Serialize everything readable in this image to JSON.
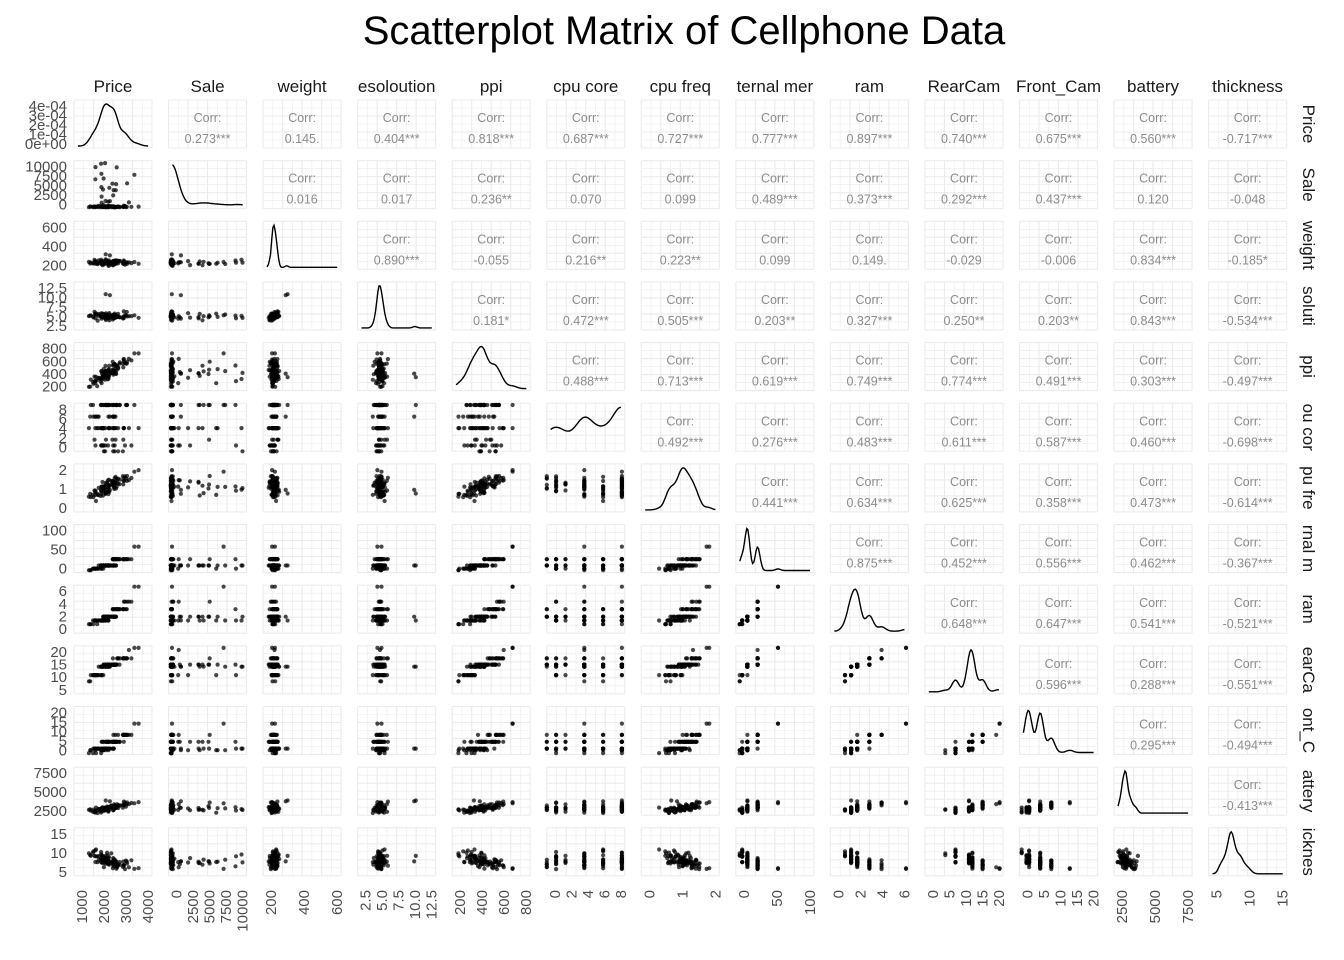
{
  "chart_data": {
    "type": "scatter",
    "title": "Scatterplot Matrix of Cellphone Data",
    "variables": [
      "Price",
      "Sale",
      "weight",
      "resoloution",
      "ppi",
      "cpu core",
      "cpu freq",
      "internal mem",
      "ram",
      "RearCam",
      "Front_Cam",
      "battery",
      "thickness"
    ],
    "strip_labels": [
      "Price",
      "Sale",
      "weight",
      "esoloution",
      "ppi",
      "cpu core",
      "cpu freq",
      "ternal mer",
      "ram",
      "RearCam",
      "Front_Cam",
      "battery",
      "thickness"
    ],
    "right_strip_labels": [
      "Price",
      "Sale",
      "weight",
      "soluti",
      "ppi",
      "ou cor",
      "pu fre",
      "rnal m",
      "ram",
      "earCa",
      "ont_C",
      "attery",
      "icknes"
    ],
    "corr_label": "Corr:",
    "correlations": [
      {
        "row": 0,
        "col": 1,
        "value": "0.273***"
      },
      {
        "row": 0,
        "col": 2,
        "value": "0.145."
      },
      {
        "row": 0,
        "col": 3,
        "value": "0.404***"
      },
      {
        "row": 0,
        "col": 4,
        "value": "0.818***"
      },
      {
        "row": 0,
        "col": 5,
        "value": "0.687***"
      },
      {
        "row": 0,
        "col": 6,
        "value": "0.727***"
      },
      {
        "row": 0,
        "col": 7,
        "value": "0.777***"
      },
      {
        "row": 0,
        "col": 8,
        "value": "0.897***"
      },
      {
        "row": 0,
        "col": 9,
        "value": "0.740***"
      },
      {
        "row": 0,
        "col": 10,
        "value": "0.675***"
      },
      {
        "row": 0,
        "col": 11,
        "value": "0.560***"
      },
      {
        "row": 0,
        "col": 12,
        "value": "-0.717***"
      },
      {
        "row": 1,
        "col": 2,
        "value": "0.016"
      },
      {
        "row": 1,
        "col": 3,
        "value": "0.017"
      },
      {
        "row": 1,
        "col": 4,
        "value": "0.236**"
      },
      {
        "row": 1,
        "col": 5,
        "value": "0.070"
      },
      {
        "row": 1,
        "col": 6,
        "value": "0.099"
      },
      {
        "row": 1,
        "col": 7,
        "value": "0.489***"
      },
      {
        "row": 1,
        "col": 8,
        "value": "0.373***"
      },
      {
        "row": 1,
        "col": 9,
        "value": "0.292***"
      },
      {
        "row": 1,
        "col": 10,
        "value": "0.437***"
      },
      {
        "row": 1,
        "col": 11,
        "value": "0.120"
      },
      {
        "row": 1,
        "col": 12,
        "value": "-0.048"
      },
      {
        "row": 2,
        "col": 3,
        "value": "0.890***"
      },
      {
        "row": 2,
        "col": 4,
        "value": "-0.055"
      },
      {
        "row": 2,
        "col": 5,
        "value": "0.216**"
      },
      {
        "row": 2,
        "col": 6,
        "value": "0.223**"
      },
      {
        "row": 2,
        "col": 7,
        "value": "0.099"
      },
      {
        "row": 2,
        "col": 8,
        "value": "0.149."
      },
      {
        "row": 2,
        "col": 9,
        "value": "-0.029"
      },
      {
        "row": 2,
        "col": 10,
        "value": "-0.006"
      },
      {
        "row": 2,
        "col": 11,
        "value": "0.834***"
      },
      {
        "row": 2,
        "col": 12,
        "value": "-0.185*"
      },
      {
        "row": 3,
        "col": 4,
        "value": "0.181*"
      },
      {
        "row": 3,
        "col": 5,
        "value": "0.472***"
      },
      {
        "row": 3,
        "col": 6,
        "value": "0.505***"
      },
      {
        "row": 3,
        "col": 7,
        "value": "0.203**"
      },
      {
        "row": 3,
        "col": 8,
        "value": "0.327***"
      },
      {
        "row": 3,
        "col": 9,
        "value": "0.250**"
      },
      {
        "row": 3,
        "col": 10,
        "value": "0.203**"
      },
      {
        "row": 3,
        "col": 11,
        "value": "0.843***"
      },
      {
        "row": 3,
        "col": 12,
        "value": "-0.534***"
      },
      {
        "row": 4,
        "col": 5,
        "value": "0.488***"
      },
      {
        "row": 4,
        "col": 6,
        "value": "0.713***"
      },
      {
        "row": 4,
        "col": 7,
        "value": "0.619***"
      },
      {
        "row": 4,
        "col": 8,
        "value": "0.749***"
      },
      {
        "row": 4,
        "col": 9,
        "value": "0.774***"
      },
      {
        "row": 4,
        "col": 10,
        "value": "0.491***"
      },
      {
        "row": 4,
        "col": 11,
        "value": "0.303***"
      },
      {
        "row": 4,
        "col": 12,
        "value": "-0.497***"
      },
      {
        "row": 5,
        "col": 6,
        "value": "0.492***"
      },
      {
        "row": 5,
        "col": 7,
        "value": "0.276***"
      },
      {
        "row": 5,
        "col": 8,
        "value": "0.483***"
      },
      {
        "row": 5,
        "col": 9,
        "value": "0.611***"
      },
      {
        "row": 5,
        "col": 10,
        "value": "0.587***"
      },
      {
        "row": 5,
        "col": 11,
        "value": "0.460***"
      },
      {
        "row": 5,
        "col": 12,
        "value": "-0.698***"
      },
      {
        "row": 6,
        "col": 7,
        "value": "0.441***"
      },
      {
        "row": 6,
        "col": 8,
        "value": "0.634***"
      },
      {
        "row": 6,
        "col": 9,
        "value": "0.625***"
      },
      {
        "row": 6,
        "col": 10,
        "value": "0.358***"
      },
      {
        "row": 6,
        "col": 11,
        "value": "0.473***"
      },
      {
        "row": 6,
        "col": 12,
        "value": "-0.614***"
      },
      {
        "row": 7,
        "col": 8,
        "value": "0.875***"
      },
      {
        "row": 7,
        "col": 9,
        "value": "0.452***"
      },
      {
        "row": 7,
        "col": 10,
        "value": "0.556***"
      },
      {
        "row": 7,
        "col": 11,
        "value": "0.462***"
      },
      {
        "row": 7,
        "col": 12,
        "value": "-0.367***"
      },
      {
        "row": 8,
        "col": 9,
        "value": "0.648***"
      },
      {
        "row": 8,
        "col": 10,
        "value": "0.647***"
      },
      {
        "row": 8,
        "col": 11,
        "value": "0.541***"
      },
      {
        "row": 8,
        "col": 12,
        "value": "-0.521***"
      },
      {
        "row": 9,
        "col": 10,
        "value": "0.596***"
      },
      {
        "row": 9,
        "col": 11,
        "value": "0.288***"
      },
      {
        "row": 9,
        "col": 12,
        "value": "-0.551***"
      },
      {
        "row": 10,
        "col": 11,
        "value": "0.295***"
      },
      {
        "row": 10,
        "col": 12,
        "value": "-0.494***"
      },
      {
        "row": 11,
        "col": 12,
        "value": "-0.413***"
      }
    ],
    "axis_ranges": [
      [
        500,
        4200
      ],
      [
        -300,
        10000
      ],
      [
        50,
        700
      ],
      [
        1.8,
        13
      ],
      [
        100,
        820
      ],
      [
        0,
        8.3
      ],
      [
        -0.1,
        2.7
      ],
      [
        -2,
        120
      ],
      [
        -0.2,
        6.2
      ],
      [
        -1,
        22
      ],
      [
        -0.6,
        20.5
      ],
      [
        1500,
        9000
      ],
      [
        4.5,
        18
      ]
    ],
    "x_ticks": [
      [
        "1000",
        "2000",
        "3000",
        "4000"
      ],
      [
        "0",
        "2500",
        "5000",
        "7500",
        "10000"
      ],
      [
        "200",
        "400",
        "600"
      ],
      [
        "2.5",
        "5.0",
        "7.5",
        "10.0",
        "12.5"
      ],
      [
        "200",
        "400",
        "600",
        "800"
      ],
      [
        "0",
        "2",
        "4",
        "6",
        "8"
      ],
      [
        "0",
        "1",
        "2"
      ],
      [
        "0",
        "50",
        "100"
      ],
      [
        "0",
        "2",
        "4",
        "6"
      ],
      [
        "0",
        "5",
        "10",
        "15",
        "20"
      ],
      [
        "0",
        "5",
        "10",
        "15",
        "20"
      ],
      [
        "2500",
        "5000",
        "7500"
      ],
      [
        "5",
        "10",
        "15"
      ]
    ],
    "y_ticks": [
      [
        "4e-04",
        "3e-04",
        "2e-04",
        "1e-04",
        "0e+00"
      ],
      [
        "10000",
        "7500",
        "5000",
        "2500",
        "0"
      ],
      [
        "600",
        "400",
        "200"
      ],
      [
        "12.5",
        "10.0",
        "7.5",
        "5.0",
        "2.5"
      ],
      [
        "800",
        "600",
        "400",
        "200"
      ],
      [
        "8",
        "6",
        "4",
        "2",
        "0"
      ],
      [
        "2",
        "1",
        "0"
      ],
      [
        "100",
        "50",
        "0"
      ],
      [
        "6",
        "4",
        "2",
        "0"
      ],
      [
        "20",
        "15",
        "10",
        "5"
      ],
      [
        "20",
        "15",
        "10",
        "5",
        "0"
      ],
      [
        "7500",
        "5000",
        "2500"
      ],
      [
        "15",
        "10",
        "5"
      ]
    ],
    "grid": true,
    "legend": "none",
    "diagonal": "density",
    "lower": "scatter",
    "upper": "correlation",
    "colors": {
      "points": "#000000",
      "grid": "#ebebeb",
      "corr_text": "#8c8c8c",
      "strip_text": "#1a1a1a",
      "tick_text": "#4d4d4d"
    }
  }
}
